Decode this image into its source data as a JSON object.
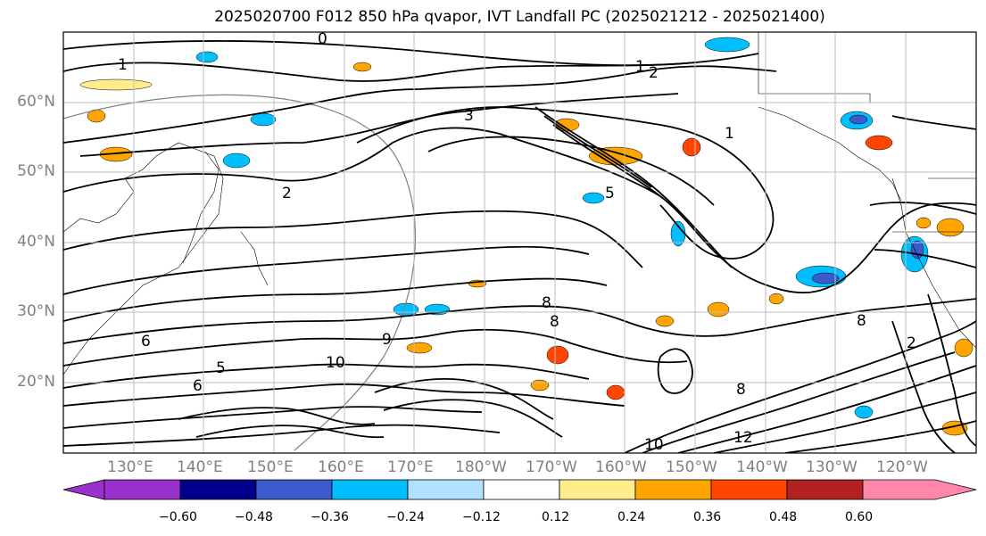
{
  "title": "2025020700 F012 850 hPa qvapor, IVT Landfall PC (2025021212 - 2025021400)",
  "lat_labels": [
    "60°N",
    "50°N",
    "40°N",
    "30°N",
    "20°N"
  ],
  "lon_labels": [
    "130°E",
    "140°E",
    "150°E",
    "160°E",
    "170°E",
    "180°W",
    "170°W",
    "160°W",
    "150°W",
    "140°W",
    "130°W",
    "120°W"
  ],
  "colorbar": {
    "tick_labels": [
      "−0.60",
      "−0.48",
      "−0.36",
      "−0.24",
      "−0.12",
      "0.12",
      "0.24",
      "0.36",
      "0.48",
      "0.60"
    ],
    "colors": [
      "#9932cc",
      "#00008b",
      "#3a5acd",
      "#00bfff",
      "#b0e2ff",
      "#ffffff",
      "#ffec8b",
      "#ffa500",
      "#ff4500",
      "#b22222",
      "#ff88aa"
    ]
  },
  "contour_labels": [
    "0",
    "1",
    "2",
    "3",
    "2",
    "5",
    "1",
    "6",
    "5",
    "6",
    "8",
    "8",
    "9",
    "10",
    "8",
    "12",
    "10",
    "2",
    "8",
    "1"
  ],
  "fill_colors": {
    "neg_light": "#b0e2ff",
    "neg_mid": "#00bfff",
    "neg_strong": "#3a5acd",
    "pos_light": "#ffec8b",
    "pos_mid": "#ffa500",
    "pos_strong": "#ff4500"
  }
}
